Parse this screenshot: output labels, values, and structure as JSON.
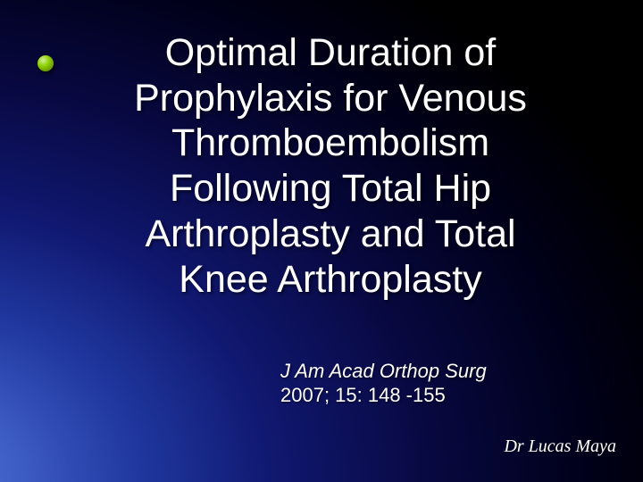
{
  "slide": {
    "title": "Optimal Duration of Prophylaxis for Venous Thromboembolism Following Total Hip Arthroplasty and Total Knee Arthroplasty",
    "citation_journal": "J Am Acad Orthop Surg",
    "citation_details": "2007; 15: 148 -155",
    "author": "Dr Lucas Maya",
    "bullet_color_light": "#d0f0a0",
    "bullet_color_mid": "#8fce00",
    "bullet_color_dark": "#4a7a00",
    "text_color": "#ffffff",
    "bg_gradient_inner": "#5878d8",
    "bg_gradient_outer": "#000000",
    "title_fontsize": 43,
    "citation_fontsize": 22,
    "author_fontsize": 20
  }
}
